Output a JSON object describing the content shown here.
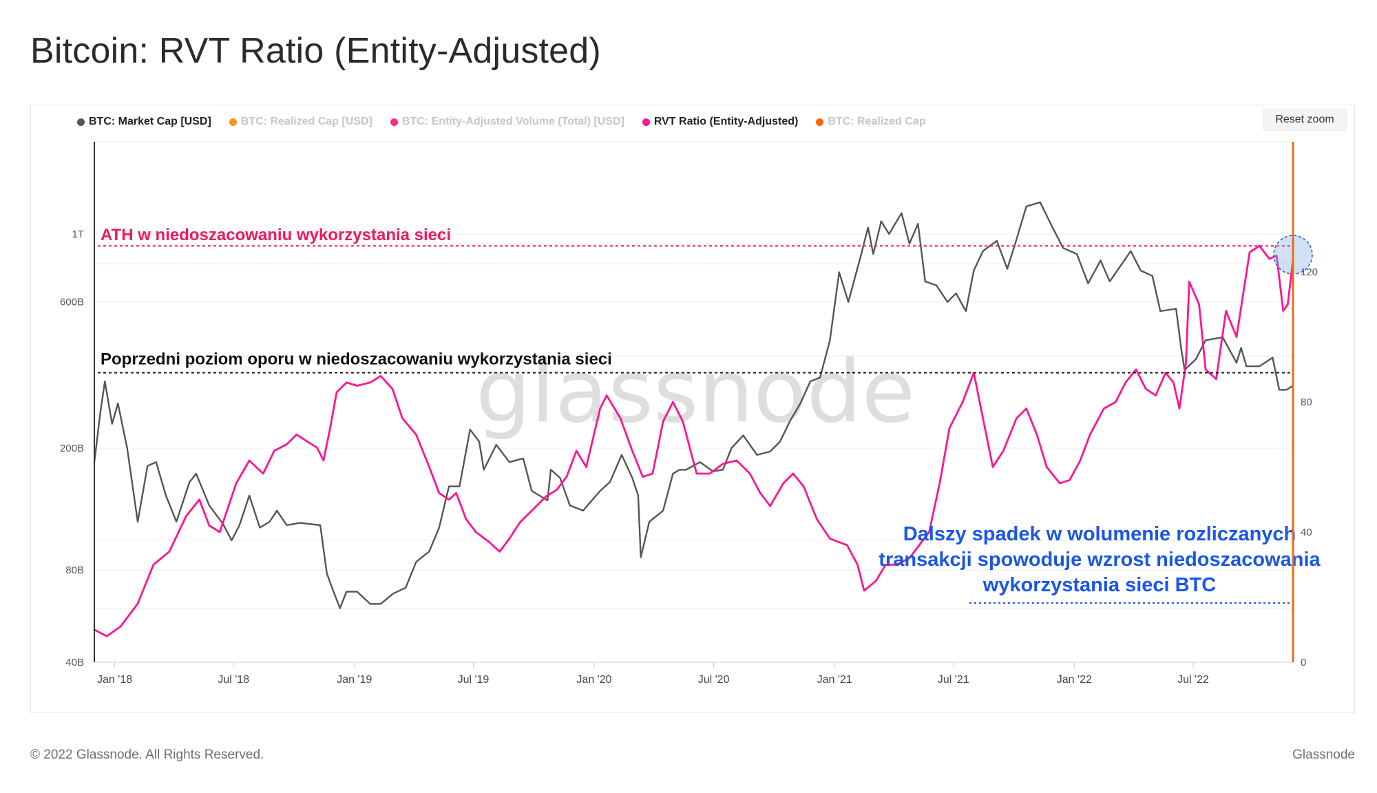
{
  "title": "Bitcoin: RVT Ratio (Entity-Adjusted)",
  "reset_zoom_label": "Reset zoom",
  "watermark": "glassnode",
  "footer": {
    "copyright": "© 2022 Glassnode. All Rights Reserved.",
    "brand": "Glassnode"
  },
  "legend": [
    {
      "label": "BTC: Market Cap [USD]",
      "color": "#555555",
      "active": true
    },
    {
      "label": "BTC: Realized Cap [USD]",
      "color": "#f7931a",
      "active": false
    },
    {
      "label": "BTC: Entity-Adjusted Volume (Total) [USD]",
      "color": "#ff2a7a",
      "active": false
    },
    {
      "label": "RVT Ratio (Entity-Adjusted)",
      "color": "#ff1493",
      "active": true
    },
    {
      "label": "BTC: Realized Cap",
      "color": "#ff6600",
      "active": false
    }
  ],
  "annotations": {
    "ath": {
      "text": "ATH w  niedoszacowaniu wykorzystania sieci",
      "color": "#f0185e",
      "level": 128
    },
    "resistance": {
      "text": "Poprzedni poziom oporu w niedoszacowaniu wykorzystania sieci",
      "color": "#111111",
      "level": 89
    },
    "note": {
      "lines": [
        "Dalszy spadek w wolumenie rozliczanych",
        "transakcji spowoduje wzrost niedoszacowania",
        "wykorzystania sieci BTC"
      ],
      "color": "#1a56e8"
    }
  },
  "chart_data": {
    "type": "line",
    "title": "Bitcoin: RVT Ratio (Entity-Adjusted)",
    "x_range": [
      "2017-12-01",
      "2022-11-30"
    ],
    "x_ticks": [
      {
        "label": "Jan '18",
        "date": "2018-01-01"
      },
      {
        "label": "Jul '18",
        "date": "2018-07-01"
      },
      {
        "label": "Jan '19",
        "date": "2019-01-01"
      },
      {
        "label": "Jul '19",
        "date": "2019-07-01"
      },
      {
        "label": "Jan '20",
        "date": "2020-01-01"
      },
      {
        "label": "Jul '20",
        "date": "2020-07-01"
      },
      {
        "label": "Jan '21",
        "date": "2021-01-01"
      },
      {
        "label": "Jul '21",
        "date": "2021-07-01"
      },
      {
        "label": "Jan '22",
        "date": "2022-01-01"
      },
      {
        "label": "Jul '22",
        "date": "2022-07-01"
      }
    ],
    "y_left": {
      "scale": "log",
      "range": [
        40000000000,
        2000000000000
      ],
      "ticks": [
        {
          "label": "40B",
          "value": 40000000000
        },
        {
          "label": "80B",
          "value": 80000000000
        },
        {
          "label": "200B",
          "value": 200000000000
        },
        {
          "label": "600B",
          "value": 600000000000
        },
        {
          "label": "1T",
          "value": 1000000000000
        }
      ]
    },
    "y_right": {
      "scale": "linear",
      "range": [
        0,
        160
      ],
      "ticks": [
        {
          "label": "0",
          "value": 0
        },
        {
          "label": "40",
          "value": 40
        },
        {
          "label": "80",
          "value": 80
        },
        {
          "label": "120",
          "value": 120
        }
      ]
    },
    "series": [
      {
        "name": "BTC: Market Cap [USD]",
        "axis": "left",
        "color": "#555555",
        "points": [
          [
            "2017-12-01",
            180000000000
          ],
          [
            "2017-12-10",
            260000000000
          ],
          [
            "2017-12-17",
            330000000000
          ],
          [
            "2017-12-28",
            240000000000
          ],
          [
            "2018-01-06",
            280000000000
          ],
          [
            "2018-01-20",
            200000000000
          ],
          [
            "2018-02-05",
            115000000000
          ],
          [
            "2018-02-20",
            175000000000
          ],
          [
            "2018-03-05",
            180000000000
          ],
          [
            "2018-03-20",
            140000000000
          ],
          [
            "2018-04-05",
            115000000000
          ],
          [
            "2018-04-25",
            155000000000
          ],
          [
            "2018-05-05",
            165000000000
          ],
          [
            "2018-05-25",
            130000000000
          ],
          [
            "2018-06-15",
            113000000000
          ],
          [
            "2018-06-28",
            100000000000
          ],
          [
            "2018-07-10",
            112000000000
          ],
          [
            "2018-07-25",
            140000000000
          ],
          [
            "2018-08-10",
            110000000000
          ],
          [
            "2018-08-25",
            115000000000
          ],
          [
            "2018-09-05",
            125000000000
          ],
          [
            "2018-09-20",
            112000000000
          ],
          [
            "2018-10-10",
            114000000000
          ],
          [
            "2018-11-10",
            112000000000
          ],
          [
            "2018-11-20",
            78000000000
          ],
          [
            "2018-11-28",
            70000000000
          ],
          [
            "2018-12-10",
            60000000000
          ],
          [
            "2018-12-20",
            68000000000
          ],
          [
            "2019-01-05",
            68000000000
          ],
          [
            "2019-01-25",
            62000000000
          ],
          [
            "2019-02-10",
            62000000000
          ],
          [
            "2019-03-01",
            67000000000
          ],
          [
            "2019-03-20",
            70000000000
          ],
          [
            "2019-04-05",
            85000000000
          ],
          [
            "2019-04-25",
            92000000000
          ],
          [
            "2019-05-10",
            110000000000
          ],
          [
            "2019-05-25",
            150000000000
          ],
          [
            "2019-06-10",
            150000000000
          ],
          [
            "2019-06-26",
            230000000000
          ],
          [
            "2019-07-10",
            210000000000
          ],
          [
            "2019-07-17",
            170000000000
          ],
          [
            "2019-08-05",
            205000000000
          ],
          [
            "2019-08-25",
            180000000000
          ],
          [
            "2019-09-15",
            185000000000
          ],
          [
            "2019-09-28",
            145000000000
          ],
          [
            "2019-10-22",
            135000000000
          ],
          [
            "2019-10-27",
            170000000000
          ],
          [
            "2019-11-10",
            160000000000
          ],
          [
            "2019-11-25",
            130000000000
          ],
          [
            "2019-12-15",
            125000000000
          ],
          [
            "2020-01-10",
            145000000000
          ],
          [
            "2020-01-25",
            155000000000
          ],
          [
            "2020-02-12",
            190000000000
          ],
          [
            "2020-02-28",
            160000000000
          ],
          [
            "2020-03-08",
            140000000000
          ],
          [
            "2020-03-12",
            88000000000
          ],
          [
            "2020-03-25",
            115000000000
          ],
          [
            "2020-04-15",
            125000000000
          ],
          [
            "2020-04-30",
            165000000000
          ],
          [
            "2020-05-10",
            170000000000
          ],
          [
            "2020-05-20",
            170000000000
          ],
          [
            "2020-06-10",
            180000000000
          ],
          [
            "2020-06-30",
            168000000000
          ],
          [
            "2020-07-15",
            170000000000
          ],
          [
            "2020-07-28",
            200000000000
          ],
          [
            "2020-08-15",
            220000000000
          ],
          [
            "2020-09-05",
            190000000000
          ],
          [
            "2020-09-25",
            195000000000
          ],
          [
            "2020-10-10",
            210000000000
          ],
          [
            "2020-10-25",
            245000000000
          ],
          [
            "2020-11-10",
            280000000000
          ],
          [
            "2020-11-25",
            330000000000
          ],
          [
            "2020-12-10",
            340000000000
          ],
          [
            "2020-12-25",
            450000000000
          ],
          [
            "2021-01-08",
            750000000000
          ],
          [
            "2021-01-22",
            600000000000
          ],
          [
            "2021-02-10",
            850000000000
          ],
          [
            "2021-02-21",
            1050000000000
          ],
          [
            "2021-03-01",
            860000000000
          ],
          [
            "2021-03-13",
            1100000000000
          ],
          [
            "2021-03-25",
            1000000000000
          ],
          [
            "2021-04-13",
            1170000000000
          ],
          [
            "2021-04-25",
            930000000000
          ],
          [
            "2021-05-08",
            1080000000000
          ],
          [
            "2021-05-19",
            700000000000
          ],
          [
            "2021-06-05",
            680000000000
          ],
          [
            "2021-06-22",
            600000000000
          ],
          [
            "2021-07-05",
            640000000000
          ],
          [
            "2021-07-20",
            560000000000
          ],
          [
            "2021-08-01",
            760000000000
          ],
          [
            "2021-08-15",
            880000000000
          ],
          [
            "2021-09-05",
            950000000000
          ],
          [
            "2021-09-21",
            770000000000
          ],
          [
            "2021-10-05",
            960000000000
          ],
          [
            "2021-10-20",
            1230000000000
          ],
          [
            "2021-11-10",
            1270000000000
          ],
          [
            "2021-11-28",
            1060000000000
          ],
          [
            "2021-12-15",
            900000000000
          ],
          [
            "2022-01-05",
            860000000000
          ],
          [
            "2022-01-22",
            690000000000
          ],
          [
            "2022-02-10",
            820000000000
          ],
          [
            "2022-02-24",
            700000000000
          ],
          [
            "2022-03-28",
            880000000000
          ],
          [
            "2022-04-12",
            760000000000
          ],
          [
            "2022-04-30",
            730000000000
          ],
          [
            "2022-05-12",
            560000000000
          ],
          [
            "2022-06-05",
            570000000000
          ],
          [
            "2022-06-13",
            420000000000
          ],
          [
            "2022-06-18",
            360000000000
          ],
          [
            "2022-07-05",
            390000000000
          ],
          [
            "2022-07-20",
            450000000000
          ],
          [
            "2022-08-15",
            460000000000
          ],
          [
            "2022-09-05",
            380000000000
          ],
          [
            "2022-09-12",
            425000000000
          ],
          [
            "2022-09-20",
            370000000000
          ],
          [
            "2022-10-10",
            370000000000
          ],
          [
            "2022-10-30",
            395000000000
          ],
          [
            "2022-11-09",
            310000000000
          ],
          [
            "2022-11-20",
            310000000000
          ],
          [
            "2022-11-30",
            320000000000
          ]
        ]
      },
      {
        "name": "RVT Ratio (Entity-Adjusted)",
        "axis": "right",
        "color": "#ff1493",
        "points": [
          [
            "2017-12-01",
            10
          ],
          [
            "2017-12-20",
            8
          ],
          [
            "2018-01-10",
            11
          ],
          [
            "2018-02-05",
            18
          ],
          [
            "2018-03-01",
            30
          ],
          [
            "2018-03-25",
            34
          ],
          [
            "2018-04-20",
            45
          ],
          [
            "2018-05-10",
            50
          ],
          [
            "2018-05-25",
            42
          ],
          [
            "2018-06-10",
            40
          ],
          [
            "2018-07-05",
            55
          ],
          [
            "2018-07-25",
            62
          ],
          [
            "2018-08-15",
            58
          ],
          [
            "2018-09-01",
            65
          ],
          [
            "2018-09-20",
            67
          ],
          [
            "2018-10-05",
            70
          ],
          [
            "2018-10-20",
            68
          ],
          [
            "2018-11-05",
            66
          ],
          [
            "2018-11-15",
            62
          ],
          [
            "2018-11-25",
            72
          ],
          [
            "2018-12-05",
            83
          ],
          [
            "2018-12-20",
            86
          ],
          [
            "2019-01-05",
            85
          ],
          [
            "2019-01-25",
            86
          ],
          [
            "2019-02-10",
            88
          ],
          [
            "2019-02-28",
            84
          ],
          [
            "2019-03-15",
            75
          ],
          [
            "2019-04-05",
            70
          ],
          [
            "2019-04-25",
            60
          ],
          [
            "2019-05-10",
            52
          ],
          [
            "2019-05-25",
            50
          ],
          [
            "2019-06-05",
            52
          ],
          [
            "2019-06-20",
            44
          ],
          [
            "2019-07-05",
            40
          ],
          [
            "2019-07-25",
            37
          ],
          [
            "2019-08-10",
            34
          ],
          [
            "2019-08-25",
            38
          ],
          [
            "2019-09-10",
            43
          ],
          [
            "2019-09-30",
            47
          ],
          [
            "2019-10-20",
            51
          ],
          [
            "2019-11-05",
            53
          ],
          [
            "2019-11-20",
            57
          ],
          [
            "2019-12-05",
            65
          ],
          [
            "2019-12-20",
            60
          ],
          [
            "2020-01-10",
            78
          ],
          [
            "2020-01-20",
            82
          ],
          [
            "2020-02-10",
            75
          ],
          [
            "2020-02-28",
            65
          ],
          [
            "2020-03-15",
            57
          ],
          [
            "2020-03-30",
            58
          ],
          [
            "2020-04-15",
            74
          ],
          [
            "2020-04-30",
            80
          ],
          [
            "2020-05-15",
            74
          ],
          [
            "2020-06-05",
            58
          ],
          [
            "2020-06-25",
            58
          ],
          [
            "2020-07-15",
            61
          ],
          [
            "2020-08-05",
            62
          ],
          [
            "2020-08-25",
            58
          ],
          [
            "2020-09-10",
            52
          ],
          [
            "2020-09-25",
            48
          ],
          [
            "2020-10-15",
            55
          ],
          [
            "2020-10-30",
            58
          ],
          [
            "2020-11-15",
            54
          ],
          [
            "2020-12-05",
            44
          ],
          [
            "2020-12-25",
            38
          ],
          [
            "2021-01-20",
            36
          ],
          [
            "2021-02-05",
            30
          ],
          [
            "2021-02-15",
            22
          ],
          [
            "2021-03-05",
            25
          ],
          [
            "2021-03-20",
            30
          ],
          [
            "2021-04-05",
            30
          ],
          [
            "2021-04-25",
            32
          ],
          [
            "2021-05-10",
            36
          ],
          [
            "2021-05-25",
            40
          ],
          [
            "2021-06-10",
            55
          ],
          [
            "2021-06-25",
            72
          ],
          [
            "2021-07-15",
            80
          ],
          [
            "2021-08-01",
            89
          ],
          [
            "2021-08-15",
            75
          ],
          [
            "2021-08-30",
            60
          ],
          [
            "2021-09-15",
            65
          ],
          [
            "2021-10-05",
            75
          ],
          [
            "2021-10-20",
            78
          ],
          [
            "2021-11-05",
            70
          ],
          [
            "2021-11-20",
            60
          ],
          [
            "2021-12-10",
            55
          ],
          [
            "2021-12-25",
            56
          ],
          [
            "2022-01-10",
            62
          ],
          [
            "2022-01-25",
            70
          ],
          [
            "2022-02-15",
            78
          ],
          [
            "2022-03-05",
            80
          ],
          [
            "2022-03-20",
            86
          ],
          [
            "2022-04-05",
            90
          ],
          [
            "2022-04-20",
            84
          ],
          [
            "2022-05-05",
            82
          ],
          [
            "2022-05-20",
            89
          ],
          [
            "2022-06-01",
            86
          ],
          [
            "2022-06-10",
            78
          ],
          [
            "2022-06-20",
            92
          ],
          [
            "2022-06-25",
            117
          ],
          [
            "2022-07-10",
            110
          ],
          [
            "2022-07-20",
            90
          ],
          [
            "2022-08-05",
            87
          ],
          [
            "2022-08-20",
            108
          ],
          [
            "2022-09-05",
            100
          ],
          [
            "2022-09-25",
            126
          ],
          [
            "2022-10-10",
            128
          ],
          [
            "2022-10-25",
            124
          ],
          [
            "2022-11-05",
            125
          ],
          [
            "2022-11-15",
            108
          ],
          [
            "2022-11-22",
            110
          ],
          [
            "2022-11-30",
            124
          ]
        ]
      }
    ]
  }
}
